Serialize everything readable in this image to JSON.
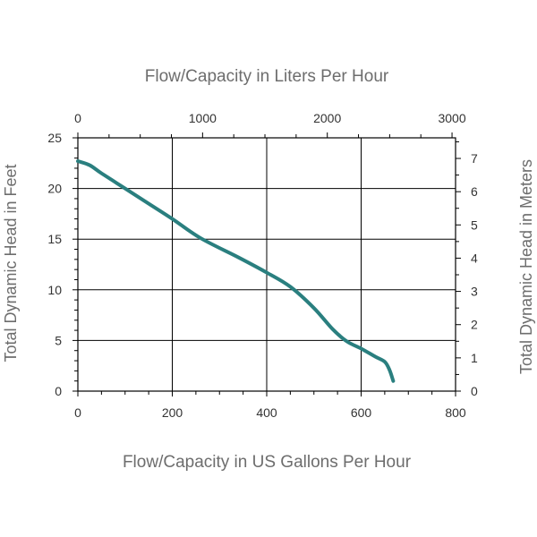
{
  "chart_data": {
    "type": "line",
    "top_axis_title": "Flow/Capacity in Liters Per Hour",
    "xlabel": "Flow/Capacity in US Gallons Per Hour",
    "ylabel": "Total Dynamic Head in Feet",
    "ylabel_right": "Total Dynamic Head in Meters",
    "xlim": [
      0,
      800
    ],
    "ylim": [
      0,
      25
    ],
    "x_ticks": [
      "0",
      "200",
      "400",
      "600",
      "800"
    ],
    "y_ticks": [
      "0",
      "5",
      "10",
      "15",
      "20",
      "25"
    ],
    "top_ticks": [
      "0",
      "1000",
      "2000",
      "3000"
    ],
    "top_tick_values": [
      0,
      1000,
      2000,
      3000
    ],
    "right_ticks": [
      "0",
      "1",
      "2",
      "3",
      "4",
      "5",
      "6",
      "7"
    ],
    "right_tick_values": [
      0,
      1,
      2,
      3,
      4,
      5,
      6,
      7
    ],
    "grid": true,
    "series": [
      {
        "color": "#2a7f7f",
        "x": [
          0,
          25,
          50,
          100,
          150,
          200,
          260,
          340,
          400,
          450,
          500,
          540,
          570,
          600,
          630,
          650,
          660,
          668
        ],
        "y": [
          22.7,
          22.3,
          21.5,
          20.0,
          18.5,
          17.0,
          15.1,
          13.2,
          11.7,
          10.3,
          8.2,
          6.1,
          4.9,
          4.2,
          3.4,
          2.9,
          2.1,
          1.0
        ]
      }
    ]
  }
}
